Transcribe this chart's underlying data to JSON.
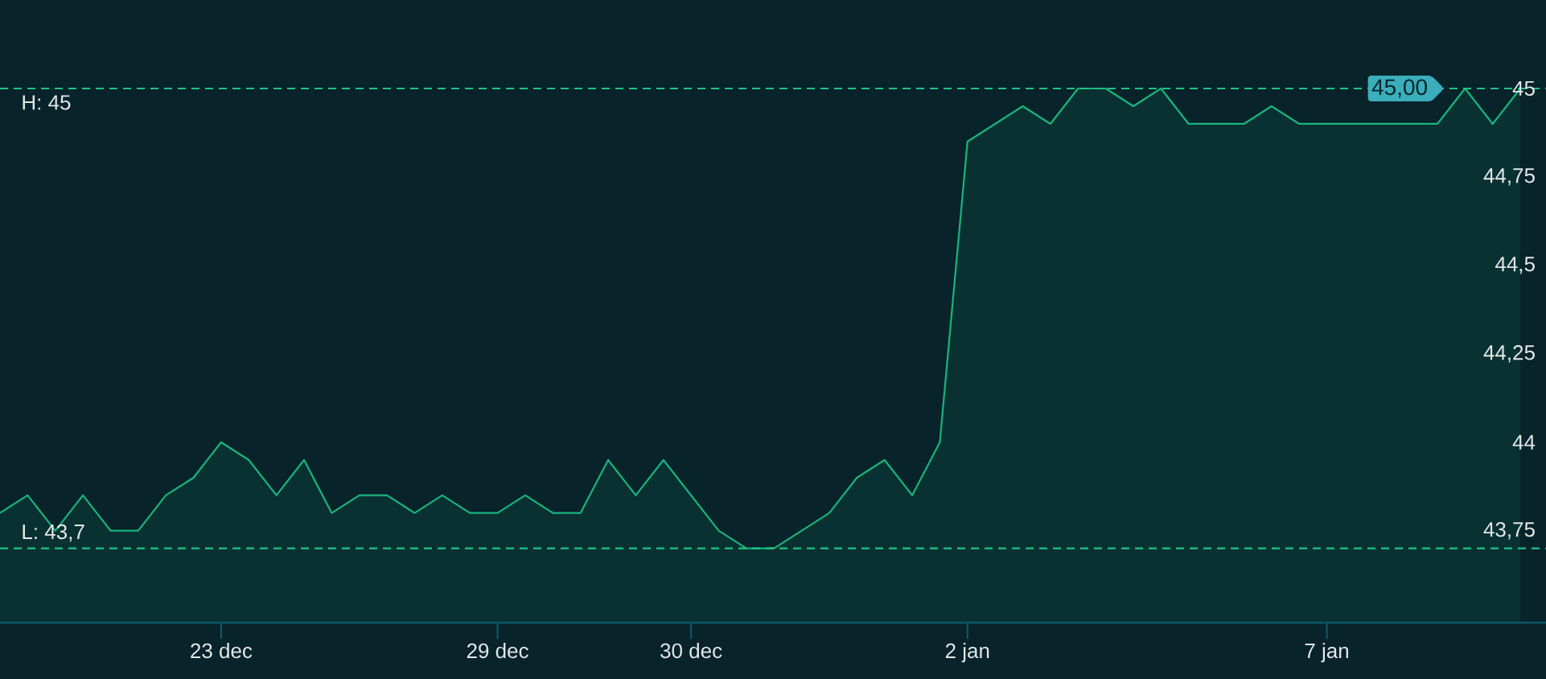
{
  "chart_data": {
    "type": "area",
    "categories": [
      null,
      null,
      null,
      null,
      null,
      null,
      null,
      null,
      "23 dec",
      null,
      null,
      null,
      null,
      null,
      null,
      null,
      null,
      null,
      "29 dec",
      null,
      null,
      null,
      null,
      null,
      null,
      "30 dec",
      null,
      null,
      null,
      null,
      null,
      null,
      null,
      null,
      null,
      "2 jan",
      null,
      null,
      null,
      null,
      null,
      null,
      null,
      null,
      null,
      null,
      null,
      null,
      "7 jan",
      null,
      null,
      null,
      null,
      null,
      null,
      null
    ],
    "values": [
      43.8,
      43.85,
      43.75,
      43.85,
      43.75,
      43.75,
      43.85,
      43.9,
      44.0,
      43.95,
      43.85,
      43.95,
      43.8,
      43.85,
      43.85,
      43.8,
      43.85,
      43.8,
      43.8,
      43.85,
      43.8,
      43.8,
      43.95,
      43.85,
      43.95,
      43.85,
      43.75,
      43.7,
      43.7,
      43.75,
      43.8,
      43.9,
      43.95,
      43.85,
      44.0,
      44.85,
      44.9,
      44.95,
      44.9,
      45.0,
      45.0,
      44.95,
      45.0,
      44.9,
      44.9,
      44.9,
      44.95,
      44.9,
      44.9,
      44.9,
      44.9,
      44.9,
      44.9,
      45.0,
      44.9,
      45.0
    ],
    "color": "#19b47c",
    "line_style": "solid",
    "marker": "none",
    "ylim": [
      43.49,
      45
    ],
    "yticks": [
      {
        "value": 43.75,
        "label": "43,75"
      },
      44,
      {
        "value": 44.25,
        "label": "44,25"
      },
      {
        "value": 44.5,
        "label": "44,5"
      },
      {
        "value": 44.75,
        "label": "44,75"
      },
      45
    ],
    "ref_lines": [
      {
        "axis": "y",
        "value": 45,
        "label": "H: 45",
        "color": "#1fc487",
        "line_style": "dashed"
      },
      {
        "axis": "y",
        "value": 43.7,
        "label": "L: 43,7",
        "color": "#1fc487",
        "line_style": "dashed"
      }
    ],
    "annotations": [
      {
        "text": "45,00",
        "y": 45
      }
    ]
  }
}
